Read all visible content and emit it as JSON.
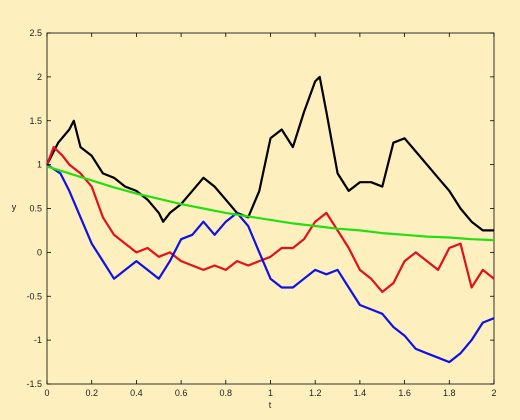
{
  "chart_data": {
    "type": "line",
    "title": "",
    "xlabel": "t",
    "ylabel": "y",
    "xlim": [
      0,
      2
    ],
    "ylim": [
      -1.5,
      2.5
    ],
    "grid": false,
    "colors": {
      "background": "#fdf0be",
      "plot_area": "#fdf0be",
      "axis": "#000000"
    },
    "x_ticks": [
      {
        "value": 0,
        "label": "0"
      },
      {
        "value": 0.2,
        "label": "0.2"
      },
      {
        "value": 0.4,
        "label": "0.4"
      },
      {
        "value": 0.6,
        "label": "0.6"
      },
      {
        "value": 0.8,
        "label": "0.8"
      },
      {
        "value": 1,
        "label": "1"
      },
      {
        "value": 1.2,
        "label": "1.2"
      },
      {
        "value": 1.4,
        "label": "1.4"
      },
      {
        "value": 1.6,
        "label": "1.6"
      },
      {
        "value": 1.8,
        "label": "1.8"
      },
      {
        "value": 2,
        "label": "2"
      }
    ],
    "y_ticks": [
      {
        "value": -1.5,
        "label": "-1.5"
      },
      {
        "value": -1,
        "label": "-1"
      },
      {
        "value": -0.5,
        "label": "-0.5"
      },
      {
        "value": 0,
        "label": "0"
      },
      {
        "value": 0.5,
        "label": "0.5"
      },
      {
        "value": 1,
        "label": "1"
      },
      {
        "value": 1.5,
        "label": "1.5"
      },
      {
        "value": 2,
        "label": "2"
      },
      {
        "value": 2.5,
        "label": "2.5"
      }
    ],
    "series": [
      {
        "color": "#000000",
        "x": [
          0,
          0.05,
          0.1,
          0.12,
          0.15,
          0.2,
          0.25,
          0.3,
          0.35,
          0.4,
          0.45,
          0.5,
          0.52,
          0.55,
          0.6,
          0.65,
          0.7,
          0.75,
          0.8,
          0.85,
          0.9,
          0.95,
          1.0,
          1.05,
          1.1,
          1.15,
          1.2,
          1.22,
          1.25,
          1.3,
          1.35,
          1.4,
          1.45,
          1.5,
          1.55,
          1.6,
          1.65,
          1.7,
          1.75,
          1.8,
          1.85,
          1.9,
          1.95,
          2.0
        ],
        "y": [
          1.0,
          1.25,
          1.4,
          1.5,
          1.2,
          1.1,
          0.9,
          0.85,
          0.75,
          0.7,
          0.6,
          0.45,
          0.35,
          0.45,
          0.55,
          0.7,
          0.85,
          0.75,
          0.6,
          0.45,
          0.4,
          0.7,
          1.3,
          1.4,
          1.2,
          1.6,
          1.95,
          2.0,
          1.6,
          0.9,
          0.7,
          0.8,
          0.8,
          0.75,
          1.25,
          1.3,
          1.15,
          1.0,
          0.85,
          0.7,
          0.5,
          0.35,
          0.25,
          0.25
        ]
      },
      {
        "color": "#e3101a",
        "x": [
          0,
          0.03,
          0.07,
          0.1,
          0.15,
          0.2,
          0.25,
          0.3,
          0.35,
          0.4,
          0.45,
          0.5,
          0.55,
          0.6,
          0.65,
          0.7,
          0.75,
          0.8,
          0.85,
          0.9,
          0.95,
          1.0,
          1.05,
          1.1,
          1.15,
          1.2,
          1.25,
          1.3,
          1.35,
          1.4,
          1.45,
          1.5,
          1.55,
          1.6,
          1.65,
          1.7,
          1.75,
          1.8,
          1.85,
          1.9,
          1.95,
          2.0
        ],
        "y": [
          1.0,
          1.2,
          1.1,
          1.0,
          0.9,
          0.75,
          0.4,
          0.2,
          0.1,
          0.0,
          0.05,
          -0.05,
          0.0,
          -0.1,
          -0.15,
          -0.2,
          -0.15,
          -0.2,
          -0.1,
          -0.15,
          -0.1,
          -0.05,
          0.05,
          0.05,
          0.15,
          0.35,
          0.45,
          0.25,
          0.05,
          -0.2,
          -0.3,
          -0.45,
          -0.35,
          -0.1,
          0.0,
          -0.1,
          -0.2,
          0.05,
          0.1,
          -0.4,
          -0.2,
          -0.3
        ]
      },
      {
        "color": "#1010e8",
        "x": [
          0,
          0.03,
          0.06,
          0.1,
          0.15,
          0.2,
          0.25,
          0.3,
          0.35,
          0.4,
          0.45,
          0.5,
          0.55,
          0.6,
          0.65,
          0.7,
          0.75,
          0.8,
          0.85,
          0.9,
          0.95,
          1.0,
          1.05,
          1.1,
          1.15,
          1.2,
          1.25,
          1.3,
          1.35,
          1.4,
          1.45,
          1.5,
          1.55,
          1.6,
          1.65,
          1.7,
          1.75,
          1.8,
          1.85,
          1.9,
          1.95,
          2.0
        ],
        "y": [
          1.0,
          0.95,
          0.9,
          0.7,
          0.4,
          0.1,
          -0.1,
          -0.3,
          -0.2,
          -0.1,
          -0.2,
          -0.3,
          -0.1,
          0.15,
          0.2,
          0.35,
          0.2,
          0.35,
          0.45,
          0.3,
          0.0,
          -0.3,
          -0.4,
          -0.4,
          -0.3,
          -0.2,
          -0.25,
          -0.2,
          -0.4,
          -0.6,
          -0.65,
          -0.7,
          -0.85,
          -0.95,
          -1.1,
          -1.15,
          -1.2,
          -1.25,
          -1.15,
          -1.0,
          -0.8,
          -0.75
        ]
      },
      {
        "color": "#22e010",
        "x": [
          0,
          0.1,
          0.2,
          0.3,
          0.4,
          0.5,
          0.6,
          0.7,
          0.8,
          0.9,
          1.0,
          1.1,
          1.2,
          1.3,
          1.4,
          1.5,
          1.6,
          1.7,
          1.8,
          1.9,
          2.0
        ],
        "y": [
          0.98,
          0.9,
          0.82,
          0.74,
          0.67,
          0.61,
          0.55,
          0.5,
          0.45,
          0.41,
          0.37,
          0.33,
          0.3,
          0.27,
          0.25,
          0.22,
          0.2,
          0.18,
          0.17,
          0.15,
          0.14
        ]
      }
    ]
  }
}
